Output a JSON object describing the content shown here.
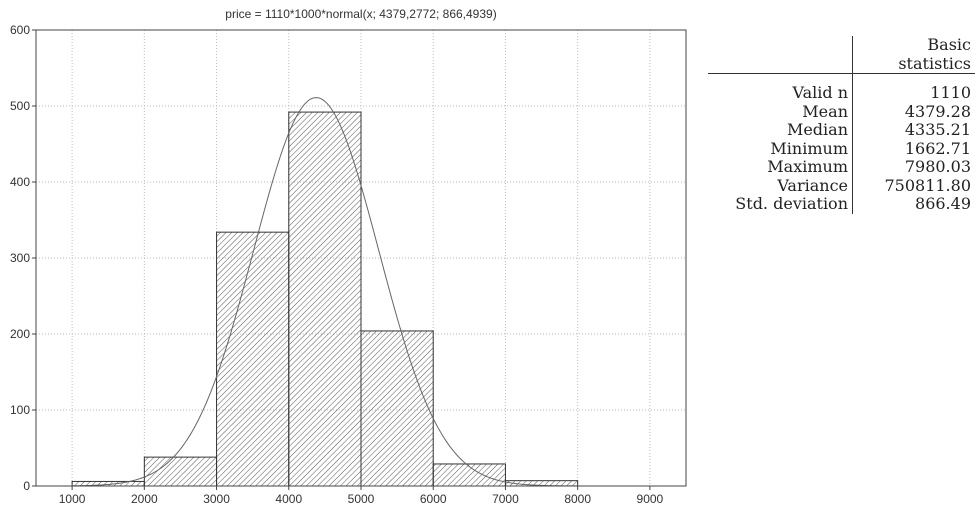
{
  "chart_data": {
    "type": "bar",
    "title": "price = 1110*1000*normal(x; 4379,2772; 866,4939)",
    "xlabel": "",
    "ylabel": "",
    "bins": [
      {
        "x0": 1000,
        "x1": 2000,
        "value": 6
      },
      {
        "x0": 2000,
        "x1": 3000,
        "value": 38
      },
      {
        "x0": 3000,
        "x1": 4000,
        "value": 334
      },
      {
        "x0": 4000,
        "x1": 5000,
        "value": 492
      },
      {
        "x0": 5000,
        "x1": 6000,
        "value": 204
      },
      {
        "x0": 6000,
        "x1": 7000,
        "value": 29
      },
      {
        "x0": 7000,
        "x1": 8000,
        "value": 7
      }
    ],
    "fit": {
      "type": "normal",
      "n": 1110,
      "bin_width": 1000,
      "mean": 4379.2772,
      "sd": 866.4939
    },
    "xlim": [
      500,
      9500
    ],
    "ylim": [
      0,
      600
    ],
    "xticks": [
      1000,
      2000,
      3000,
      4000,
      5000,
      6000,
      7000,
      8000,
      9000
    ],
    "yticks": [
      0,
      100,
      200,
      300,
      400,
      500,
      600
    ],
    "grid": true,
    "fill": "hatched"
  },
  "stats": {
    "header": "Basic statistics",
    "rows": [
      {
        "label": "Valid n",
        "value": "1110"
      },
      {
        "label": "Mean",
        "value": "4379.28"
      },
      {
        "label": "Median",
        "value": "4335.21"
      },
      {
        "label": "Minimum",
        "value": "1662.71"
      },
      {
        "label": "Maximum",
        "value": "7980.03"
      },
      {
        "label": "Variance",
        "value": "750811.80"
      },
      {
        "label": "Std. deviation",
        "value": "866.49"
      }
    ]
  }
}
